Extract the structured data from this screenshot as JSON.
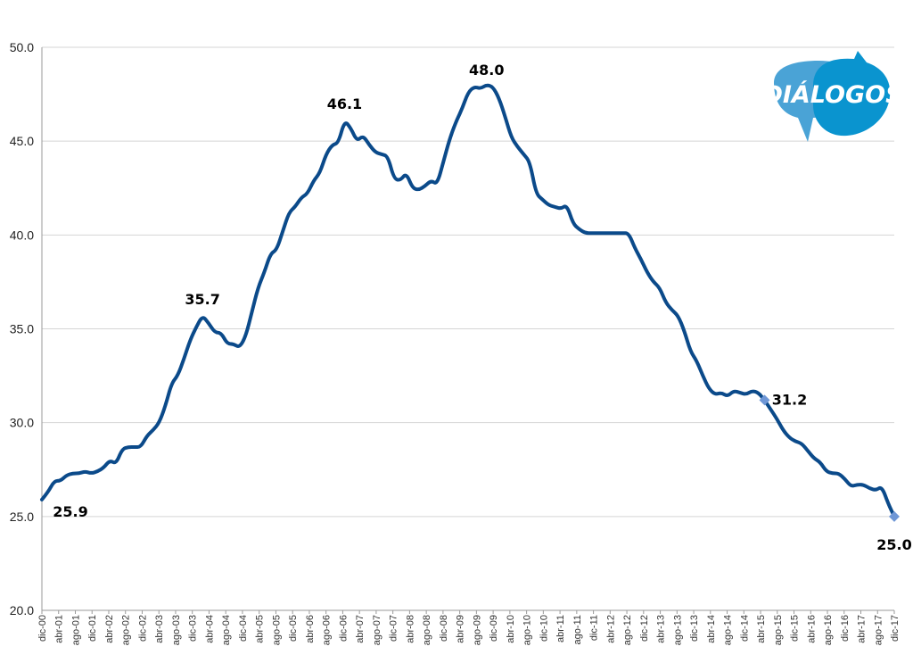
{
  "logo": {
    "text": "DIÁLOGOS"
  },
  "colors": {
    "line": "#0b4a8a",
    "marker": "#6f97d6",
    "grid": "#d4d4d4",
    "logo_light": "#4aa3d6",
    "logo_dark": "#0a94cf"
  },
  "chart_data": {
    "type": "line",
    "title": "",
    "xlabel": "",
    "ylabel": "",
    "ylim": [
      20.0,
      50.0
    ],
    "yticks": [
      "20.0",
      "25.0",
      "30.0",
      "35.0",
      "40.0",
      "45.0",
      "50.0"
    ],
    "grid": true,
    "x_tick_labels": [
      "dic-00",
      "abr-01",
      "ago-01",
      "dic-01",
      "abr-02",
      "ago-02",
      "dic-02",
      "abr-03",
      "ago-03",
      "dic-03",
      "abr-04",
      "ago-04",
      "dic-04",
      "abr-05",
      "ago-05",
      "dic-05",
      "abr-06",
      "ago-06",
      "dic-06",
      "abr-07",
      "ago-07",
      "dic-07",
      "abr-08",
      "ago-08",
      "dic-08",
      "abr-09",
      "ago-09",
      "dic-09",
      "abr-10",
      "ago-10",
      "dic-10",
      "abr-11",
      "ago-11",
      "dic-11",
      "abr-12",
      "ago-12",
      "dic-12",
      "abr-13",
      "ago-13",
      "dic-13",
      "abr-14",
      "ago-14",
      "dic-14",
      "abr-15",
      "ago-15",
      "dic-15",
      "abr-16",
      "ago-16",
      "dic-16",
      "abr-17",
      "ago-17",
      "dic-17"
    ],
    "series": [
      {
        "values": [
          [
            0,
            25.9
          ],
          [
            1,
            26.3
          ],
          [
            2,
            26.9
          ],
          [
            3,
            26.9
          ],
          [
            4,
            27.2
          ],
          [
            5,
            27.3
          ],
          [
            6,
            27.3
          ],
          [
            7,
            27.4
          ],
          [
            8,
            27.3
          ],
          [
            9,
            27.4
          ],
          [
            10,
            27.6
          ],
          [
            11,
            28.0
          ],
          [
            12,
            27.8
          ],
          [
            13,
            28.6
          ],
          [
            14,
            28.7
          ],
          [
            15,
            28.7
          ],
          [
            16,
            28.7
          ],
          [
            17,
            29.3
          ],
          [
            18,
            29.6
          ],
          [
            19,
            30.0
          ],
          [
            20,
            30.9
          ],
          [
            21,
            32.1
          ],
          [
            22,
            32.5
          ],
          [
            23,
            33.4
          ],
          [
            24,
            34.4
          ],
          [
            25,
            35.1
          ],
          [
            26,
            35.7
          ],
          [
            27,
            35.3
          ],
          [
            28,
            34.8
          ],
          [
            29,
            34.8
          ],
          [
            30,
            34.2
          ],
          [
            31,
            34.2
          ],
          [
            32,
            34.0
          ],
          [
            33,
            34.6
          ],
          [
            34,
            35.9
          ],
          [
            35,
            37.2
          ],
          [
            36,
            38.0
          ],
          [
            37,
            39.0
          ],
          [
            38,
            39.2
          ],
          [
            39,
            40.2
          ],
          [
            40,
            41.2
          ],
          [
            41,
            41.5
          ],
          [
            42,
            42.0
          ],
          [
            43,
            42.2
          ],
          [
            44,
            42.9
          ],
          [
            45,
            43.3
          ],
          [
            46,
            44.3
          ],
          [
            47,
            44.8
          ],
          [
            48,
            44.9
          ],
          [
            49,
            46.1
          ],
          [
            50,
            45.7
          ],
          [
            51,
            45.0
          ],
          [
            52,
            45.3
          ],
          [
            53,
            44.8
          ],
          [
            54,
            44.4
          ],
          [
            55,
            44.3
          ],
          [
            56,
            44.2
          ],
          [
            57,
            43.0
          ],
          [
            58,
            42.9
          ],
          [
            59,
            43.3
          ],
          [
            60,
            42.5
          ],
          [
            61,
            42.4
          ],
          [
            62,
            42.6
          ],
          [
            63,
            42.9
          ],
          [
            64,
            42.7
          ],
          [
            65,
            43.9
          ],
          [
            66,
            45.1
          ],
          [
            67,
            46.0
          ],
          [
            68,
            46.7
          ],
          [
            69,
            47.6
          ],
          [
            70,
            47.9
          ],
          [
            71,
            47.8
          ],
          [
            72,
            48.0
          ],
          [
            73,
            47.9
          ],
          [
            74,
            47.3
          ],
          [
            75,
            46.3
          ],
          [
            76,
            45.2
          ],
          [
            77,
            44.7
          ],
          [
            78,
            44.3
          ],
          [
            79,
            43.9
          ],
          [
            80,
            42.2
          ],
          [
            81,
            41.9
          ],
          [
            82,
            41.6
          ],
          [
            83,
            41.5
          ],
          [
            84,
            41.4
          ],
          [
            85,
            41.6
          ],
          [
            86,
            40.6
          ],
          [
            87,
            40.3
          ],
          [
            88,
            40.1
          ],
          [
            89,
            40.1
          ],
          [
            90,
            40.1
          ],
          [
            91,
            40.1
          ],
          [
            92,
            40.1
          ],
          [
            93,
            40.1
          ],
          [
            94,
            40.1
          ],
          [
            95,
            40.1
          ],
          [
            96,
            39.3
          ],
          [
            97,
            38.7
          ],
          [
            98,
            38.0
          ],
          [
            99,
            37.5
          ],
          [
            100,
            37.2
          ],
          [
            101,
            36.4
          ],
          [
            102,
            36.0
          ],
          [
            103,
            35.7
          ],
          [
            104,
            34.9
          ],
          [
            105,
            33.8
          ],
          [
            106,
            33.3
          ],
          [
            107,
            32.5
          ],
          [
            108,
            31.8
          ],
          [
            109,
            31.5
          ],
          [
            110,
            31.6
          ],
          [
            111,
            31.4
          ],
          [
            112,
            31.7
          ],
          [
            113,
            31.6
          ],
          [
            114,
            31.5
          ],
          [
            115,
            31.7
          ],
          [
            116,
            31.6
          ],
          [
            117,
            31.2
          ],
          [
            118,
            30.7
          ],
          [
            119,
            30.2
          ],
          [
            120,
            29.6
          ],
          [
            121,
            29.2
          ],
          [
            122,
            29.0
          ],
          [
            123,
            28.9
          ],
          [
            124,
            28.5
          ],
          [
            125,
            28.1
          ],
          [
            126,
            27.9
          ],
          [
            127,
            27.4
          ],
          [
            128,
            27.3
          ],
          [
            129,
            27.3
          ],
          [
            130,
            27.0
          ],
          [
            131,
            26.6
          ],
          [
            132,
            26.7
          ],
          [
            133,
            26.7
          ],
          [
            134,
            26.5
          ],
          [
            135,
            26.4
          ],
          [
            136,
            26.6
          ],
          [
            137,
            25.7
          ],
          [
            138,
            25.0
          ]
        ]
      }
    ],
    "markers": [
      {
        "x": 117,
        "y": 31.2
      },
      {
        "x": 138,
        "y": 25.0
      }
    ],
    "data_labels": [
      {
        "text": "25.9",
        "x": 0,
        "y": 25.9
      },
      {
        "text": "35.7",
        "x": 26,
        "y": 35.7
      },
      {
        "text": "46.1",
        "x": 49,
        "y": 46.1
      },
      {
        "text": "48.0",
        "x": 72,
        "y": 48.0
      },
      {
        "text": "31.2",
        "x": 117,
        "y": 31.2
      },
      {
        "text": "25.0",
        "x": 138,
        "y": 25.0
      }
    ]
  }
}
